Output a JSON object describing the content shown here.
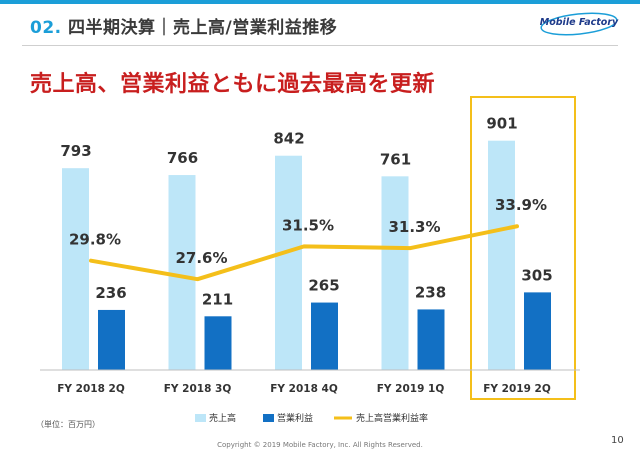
{
  "header": {
    "number": "02.",
    "title": "四半期決算｜売上高/営業利益推移",
    "logo": "Mobile Factory"
  },
  "headline": "売上高、営業利益ともに過去最高を更新",
  "unit_note": "（単位：百万円）",
  "footer": "Copyright © 2019 Mobile Factory, Inc. All Rights Reserved.",
  "page_number": "10",
  "colors": {
    "accent": "#1b9ed8",
    "revenue": "#bde6f8",
    "operating_profit": "#1270c4",
    "margin": "#f4bf1a",
    "highlight": "#f4bf1a",
    "headline": "#c81e1e"
  },
  "chart_data": {
    "type": "bar",
    "categories": [
      "FY 2018 2Q",
      "FY 2018 3Q",
      "FY 2018 4Q",
      "FY 2019 1Q",
      "FY 2019 2Q"
    ],
    "series": [
      {
        "name": "売上高",
        "type": "bar",
        "values": [
          793,
          766,
          842,
          761,
          901
        ]
      },
      {
        "name": "営業利益",
        "type": "bar",
        "values": [
          236,
          211,
          265,
          238,
          305
        ]
      },
      {
        "name": "売上高営業利益率",
        "type": "line",
        "values": [
          29.8,
          27.6,
          31.5,
          31.3,
          33.9
        ],
        "labels": [
          "29.8%",
          "27.6%",
          "31.5%",
          "31.3%",
          "33.9%"
        ]
      }
    ],
    "highlight_category": "FY 2019 2Q",
    "legend_position": "bottom"
  }
}
